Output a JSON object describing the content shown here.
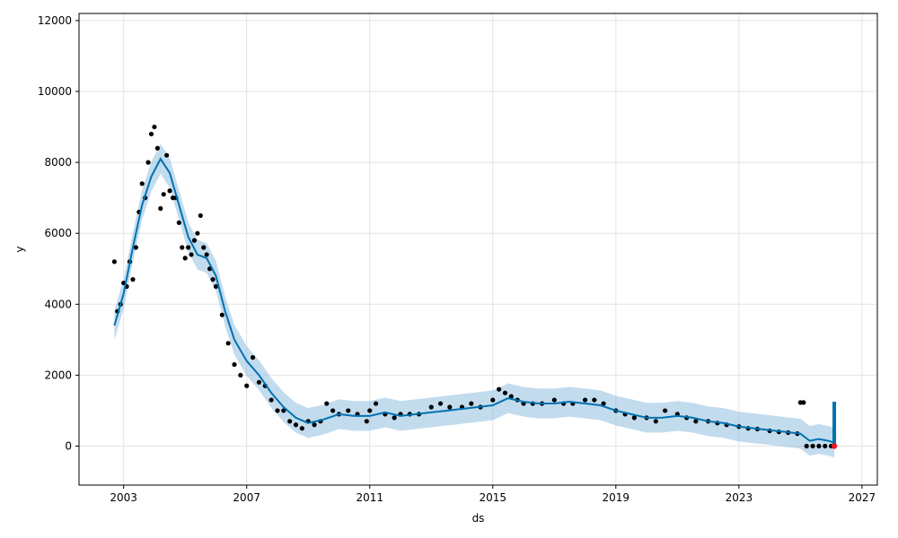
{
  "chart_data": {
    "type": "line",
    "title": "",
    "xlabel": "ds",
    "ylabel": "y",
    "x_ticks": [
      "2003",
      "2007",
      "2011",
      "2015",
      "2019",
      "2023",
      "2027"
    ],
    "y_ticks": [
      "0",
      "2000",
      "4000",
      "6000",
      "8000",
      "10000",
      "12000"
    ],
    "xlim": [
      2001.55,
      2027.5
    ],
    "ylim": [
      -1100,
      12200
    ],
    "grid": true,
    "colors": {
      "observed": "#000000",
      "forecast": "#0072B2",
      "interval": "#8fbfe0",
      "highlight": "#e8191e"
    },
    "series": [
      {
        "kind": "observed",
        "x": [
          2002.7,
          2002.8,
          2002.9,
          2003.0,
          2003.1,
          2003.2,
          2003.3,
          2003.4,
          2003.5,
          2003.6,
          2003.7,
          2003.8,
          2003.9,
          2004.0,
          2004.1,
          2004.2,
          2004.3,
          2004.4,
          2004.5,
          2004.6,
          2004.7,
          2004.8,
          2004.9,
          2005.0,
          2005.1,
          2005.2,
          2005.3,
          2005.4,
          2005.5,
          2005.6,
          2005.7,
          2005.8,
          2005.9,
          2006.0,
          2006.2,
          2006.4,
          2006.6,
          2006.8,
          2007.0,
          2007.2,
          2007.4,
          2007.6,
          2007.8,
          2008.0,
          2008.2,
          2008.4,
          2008.6,
          2008.8,
          2009.0,
          2009.2,
          2009.4,
          2009.6,
          2009.8,
          2010.0,
          2010.3,
          2010.6,
          2010.9,
          2011.0,
          2011.2,
          2011.5,
          2011.8,
          2012.0,
          2012.3,
          2012.6,
          2013.0,
          2013.3,
          2013.6,
          2014.0,
          2014.3,
          2014.6,
          2015.0,
          2015.2,
          2015.4,
          2015.6,
          2015.8,
          2016.0,
          2016.3,
          2016.6,
          2017.0,
          2017.3,
          2017.6,
          2018.0,
          2018.3,
          2018.6,
          2019.0,
          2019.3,
          2019.6,
          2020.0,
          2020.3,
          2020.6,
          2021.0,
          2021.3,
          2021.6,
          2022.0,
          2022.3,
          2022.6,
          2023.0,
          2023.3,
          2023.6,
          2024.0,
          2024.3,
          2024.6,
          2024.9,
          2025.0,
          2025.1,
          2025.2,
          2025.4,
          2025.6,
          2025.8,
          2026.0,
          2026.1
        ],
        "y": [
          5200,
          3800,
          4000,
          4600,
          4500,
          5200,
          4700,
          5600,
          6600,
          7400,
          7000,
          8000,
          8800,
          9000,
          8400,
          6700,
          7100,
          8200,
          7200,
          7000,
          7000,
          6300,
          5600,
          5300,
          5600,
          5400,
          5800,
          6000,
          6500,
          5600,
          5400,
          5000,
          4700,
          4500,
          3700,
          2900,
          2300,
          2000,
          1700,
          2500,
          1800,
          1700,
          1300,
          1000,
          1000,
          700,
          600,
          500,
          700,
          600,
          700,
          1200,
          1000,
          900,
          1000,
          900,
          700,
          1000,
          1200,
          900,
          800,
          900,
          900,
          900,
          1100,
          1200,
          1100,
          1100,
          1200,
          1100,
          1300,
          1600,
          1500,
          1400,
          1300,
          1200,
          1200,
          1200,
          1300,
          1200,
          1200,
          1300,
          1300,
          1200,
          1000,
          900,
          800,
          800,
          700,
          1000,
          900,
          800,
          700,
          700,
          650,
          600,
          550,
          500,
          480,
          430,
          400,
          380,
          350,
          1230,
          1230,
          0,
          0,
          0,
          0,
          0,
          0
        ]
      },
      {
        "kind": "forecast",
        "x": [
          2002.7,
          2003.0,
          2003.3,
          2003.6,
          2003.9,
          2004.2,
          2004.5,
          2004.8,
          2005.1,
          2005.4,
          2005.7,
          2006.0,
          2006.3,
          2006.6,
          2007.0,
          2007.4,
          2007.8,
          2008.2,
          2008.6,
          2009.0,
          2009.5,
          2010.0,
          2010.5,
          2011.0,
          2011.5,
          2012.0,
          2012.5,
          2013.0,
          2013.5,
          2014.0,
          2014.5,
          2015.0,
          2015.5,
          2016.0,
          2016.5,
          2017.0,
          2017.5,
          2018.0,
          2018.5,
          2019.0,
          2019.5,
          2020.0,
          2020.5,
          2021.0,
          2021.5,
          2022.0,
          2022.5,
          2023.0,
          2023.5,
          2024.0,
          2024.5,
          2025.0,
          2025.3,
          2025.6,
          2025.9,
          2026.1
        ],
        "y": [
          3400,
          4300,
          5600,
          6800,
          7600,
          8100,
          7700,
          6800,
          5900,
          5400,
          5300,
          4800,
          3800,
          3000,
          2400,
          2000,
          1500,
          1100,
          800,
          650,
          750,
          900,
          850,
          850,
          950,
          850,
          900,
          950,
          1000,
          1050,
          1100,
          1150,
          1350,
          1250,
          1200,
          1200,
          1250,
          1200,
          1150,
          1000,
          900,
          800,
          800,
          850,
          800,
          700,
          650,
          550,
          500,
          450,
          400,
          350,
          150,
          200,
          150,
          100
        ]
      }
    ]
  }
}
